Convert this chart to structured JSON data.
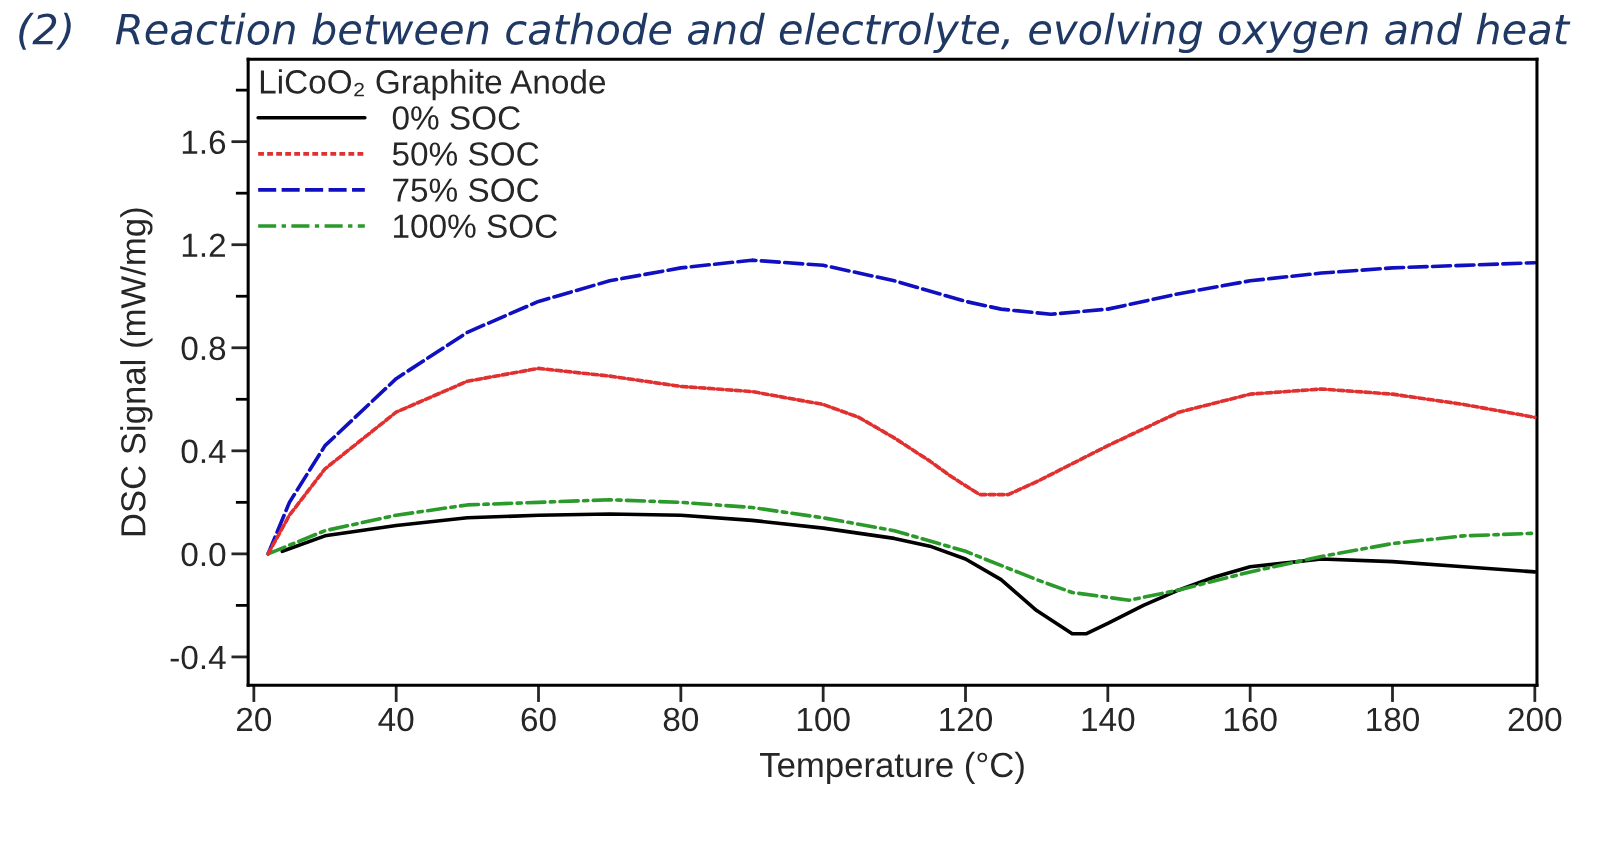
{
  "chart_data": {
    "type": "line",
    "title": "(2)   Reaction between cathode and electrolyte, evolving oxygen and heat",
    "xlabel": "Temperature (°C)",
    "ylabel": "DSC Signal (mW/mg)",
    "legend_title": "LiCoO₂ Graphite Anode",
    "legend": "top left",
    "grid": false,
    "xlim": [
      19.2,
      200.3
    ],
    "xticks": [
      20,
      40,
      60,
      80,
      100,
      120,
      140,
      160,
      180,
      200
    ],
    "ylim": [
      -0.51,
      1.92
    ],
    "yticks": [
      {
        "value": -0.4,
        "label": "-0.4"
      },
      {
        "value": -0.2,
        "label": null
      },
      {
        "value": 0.0,
        "label": "0.0"
      },
      {
        "value": 0.2,
        "label": null
      },
      {
        "value": 0.4,
        "label": "0.4"
      },
      {
        "value": 0.6,
        "label": null
      },
      {
        "value": 0.8,
        "label": "0.8"
      },
      {
        "value": 1.0,
        "label": null
      },
      {
        "value": 1.2,
        "label": "1.2"
      },
      {
        "value": 1.4,
        "label": null
      },
      {
        "value": 1.6,
        "label": "1.6"
      },
      {
        "value": 1.8,
        "label": null
      }
    ],
    "series": [
      {
        "name": "0% SOC",
        "color": "#000000",
        "line_style": "solid",
        "x": [
          24,
          30,
          40,
          50,
          60,
          70,
          80,
          90,
          100,
          110,
          115,
          120,
          125,
          130,
          135,
          137,
          140,
          145,
          150,
          155,
          160,
          170,
          180,
          190,
          200
        ],
        "values": [
          0.01,
          0.07,
          0.11,
          0.14,
          0.15,
          0.155,
          0.15,
          0.13,
          0.1,
          0.06,
          0.03,
          -0.02,
          -0.1,
          -0.22,
          -0.31,
          -0.31,
          -0.27,
          -0.2,
          -0.14,
          -0.09,
          -0.05,
          -0.02,
          -0.03,
          -0.05,
          -0.07
        ]
      },
      {
        "name": "50% SOC",
        "color": "#e03030",
        "line_style": "dotted",
        "x": [
          22,
          25,
          30,
          40,
          50,
          60,
          70,
          80,
          90,
          100,
          105,
          110,
          115,
          118,
          122,
          126,
          130,
          135,
          140,
          150,
          160,
          170,
          180,
          190,
          200
        ],
        "values": [
          0.0,
          0.15,
          0.33,
          0.55,
          0.67,
          0.72,
          0.69,
          0.65,
          0.63,
          0.58,
          0.53,
          0.45,
          0.36,
          0.3,
          0.23,
          0.23,
          0.28,
          0.35,
          0.42,
          0.55,
          0.62,
          0.64,
          0.62,
          0.58,
          0.53
        ]
      },
      {
        "name": "75% SOC",
        "color": "#1010c0",
        "line_style": "dashed",
        "x": [
          22,
          25,
          30,
          40,
          50,
          60,
          70,
          80,
          90,
          100,
          110,
          120,
          125,
          132,
          140,
          150,
          160,
          170,
          180,
          190,
          200
        ],
        "values": [
          0.0,
          0.2,
          0.42,
          0.68,
          0.86,
          0.98,
          1.06,
          1.11,
          1.14,
          1.12,
          1.06,
          0.98,
          0.95,
          0.93,
          0.95,
          1.01,
          1.06,
          1.09,
          1.11,
          1.12,
          1.13
        ]
      },
      {
        "name": "100% SOC",
        "color": "#2a9a2a",
        "line_style": "dashdot",
        "x": [
          22,
          30,
          40,
          50,
          60,
          70,
          80,
          90,
          100,
          110,
          120,
          130,
          135,
          143,
          150,
          160,
          170,
          180,
          190,
          200
        ],
        "values": [
          0.0,
          0.09,
          0.15,
          0.19,
          0.2,
          0.21,
          0.2,
          0.18,
          0.14,
          0.09,
          0.01,
          -0.1,
          -0.15,
          -0.18,
          -0.14,
          -0.07,
          -0.01,
          0.04,
          0.07,
          0.08
        ]
      }
    ]
  }
}
